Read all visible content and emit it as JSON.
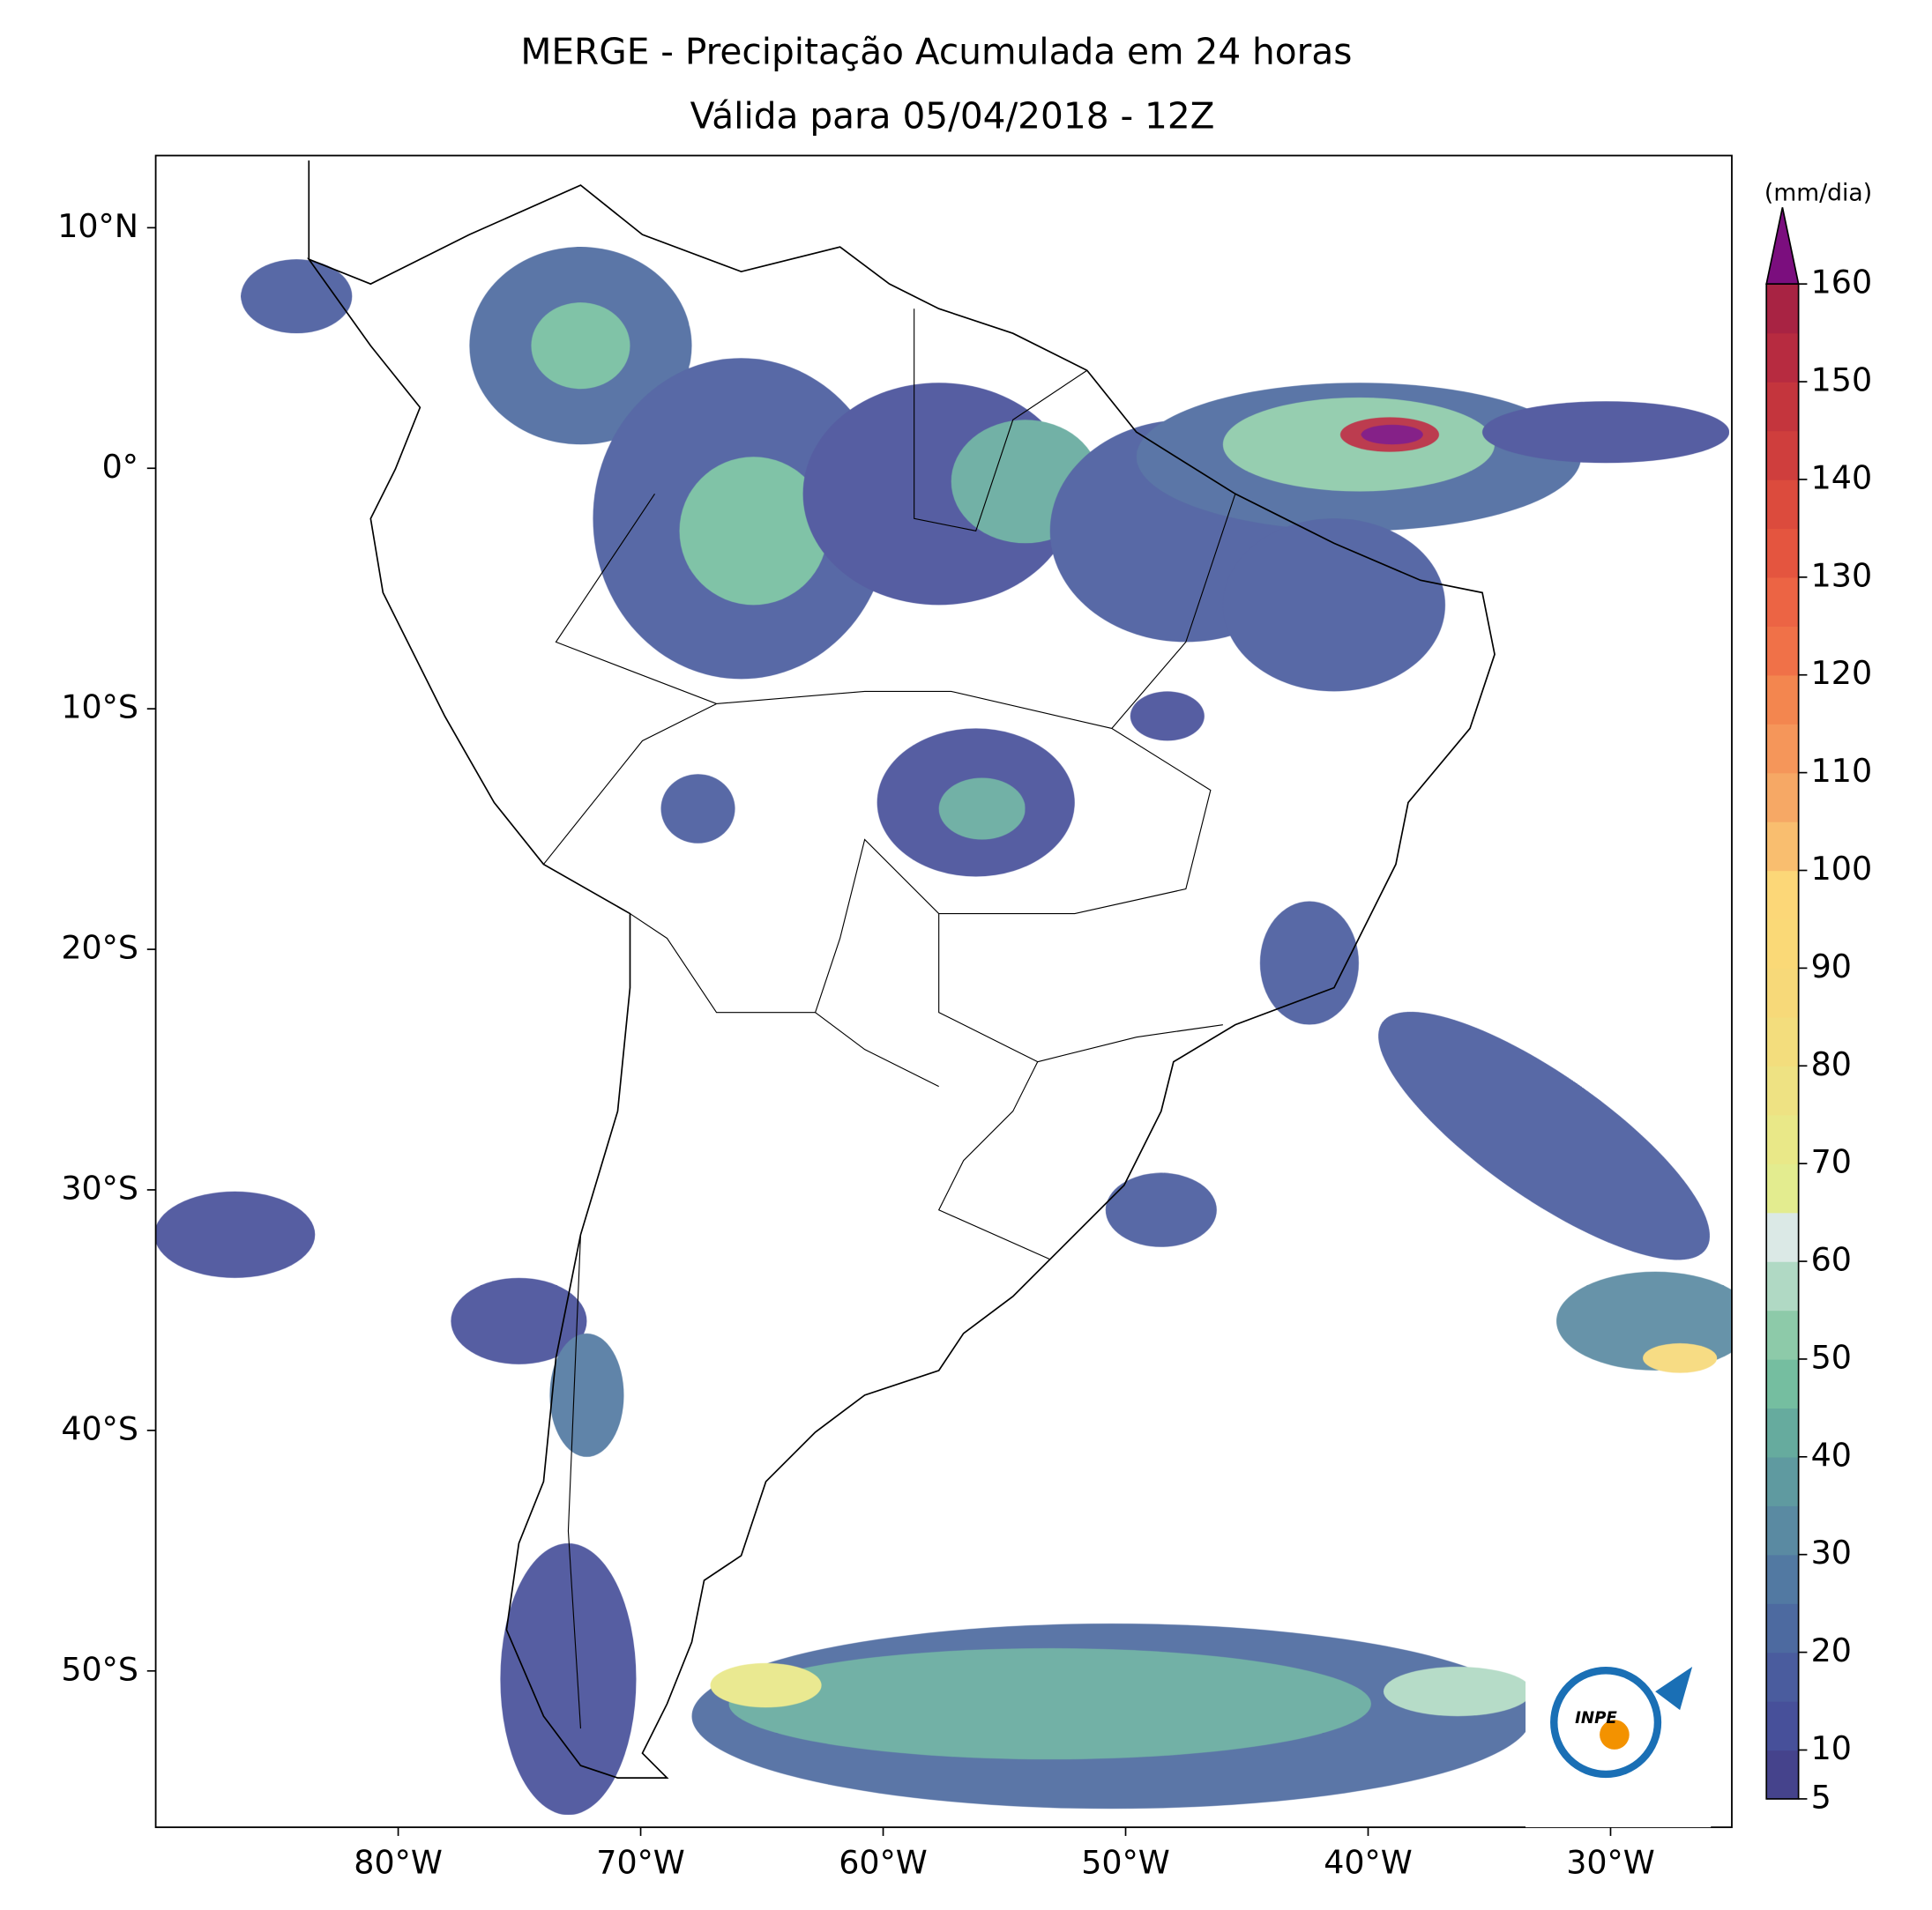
{
  "chart_data": {
    "type": "map",
    "title": "MERGE - Precipitação Acumulada em 24 horas",
    "subtitle": "Válida para 05/04/2018 - 12Z",
    "xlim": [
      -90,
      -25
    ],
    "ylim": [
      -56.5,
      13
    ],
    "xticks": [
      {
        "value": -80,
        "label": "80°W"
      },
      {
        "value": -70,
        "label": "70°W"
      },
      {
        "value": -60,
        "label": "60°W"
      },
      {
        "value": -50,
        "label": "50°W"
      },
      {
        "value": -40,
        "label": "40°W"
      },
      {
        "value": -30,
        "label": "30°W"
      }
    ],
    "yticks": [
      {
        "value": 10,
        "label": "10°N"
      },
      {
        "value": 0,
        "label": "0°"
      },
      {
        "value": -10,
        "label": "10°S"
      },
      {
        "value": -20,
        "label": "20°S"
      },
      {
        "value": -30,
        "label": "30°S"
      },
      {
        "value": -40,
        "label": "40°S"
      },
      {
        "value": -50,
        "label": "50°S"
      }
    ],
    "colorbar": {
      "label": "(mm/dia)",
      "lim": [
        5,
        160
      ],
      "ticks": [
        5,
        10,
        20,
        30,
        40,
        50,
        60,
        70,
        80,
        90,
        100,
        110,
        120,
        130,
        140,
        150,
        160
      ],
      "colors": [
        "#45438c",
        "#47509a",
        "#4a5c9e",
        "#4d6aa0",
        "#5279a2",
        "#5a8aa2",
        "#5f9aa0",
        "#66ab9e",
        "#75bea0",
        "#8dcaa9",
        "#b0d9c4",
        "#dbe9e6",
        "#e3ec8f",
        "#e9e888",
        "#eee283",
        "#f3dd7d",
        "#f7d979",
        "#fad977",
        "#fcd778",
        "#f9be6f",
        "#f6a865",
        "#f5965a",
        "#f3864f",
        "#f07148",
        "#ec6444",
        "#e4553f",
        "#dc4b3d",
        "#cf3e3d",
        "#c4353d",
        "#b72b40",
        "#a82343"
      ],
      "extend_color": "#7b0e7e"
    },
    "logo": "INPE"
  }
}
